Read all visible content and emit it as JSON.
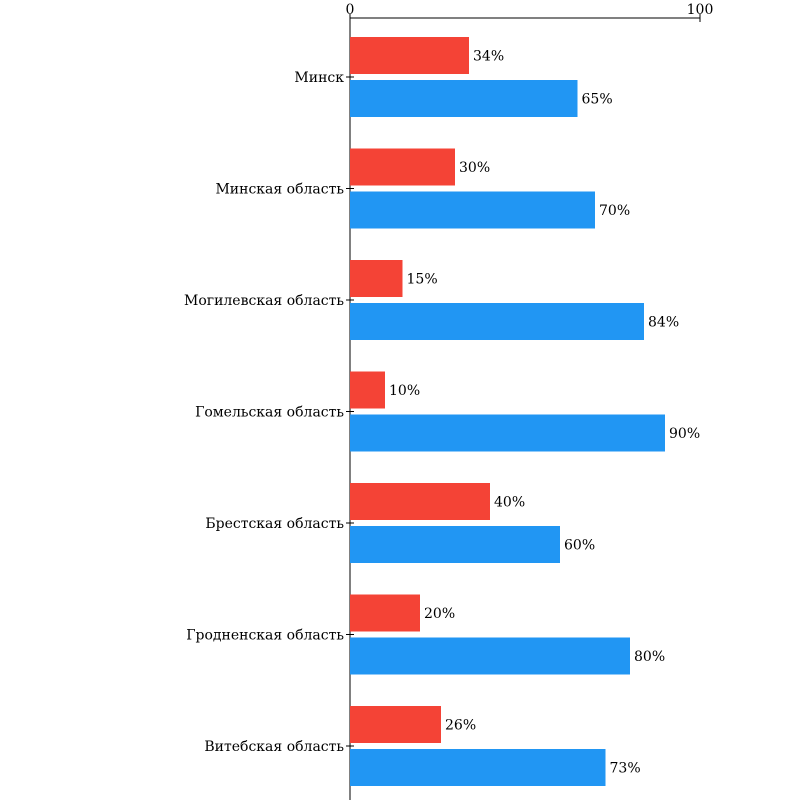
{
  "chart_data": {
    "type": "bar",
    "orientation": "horizontal",
    "xlim": [
      0,
      100
    ],
    "x_ticks": [
      "0",
      "100"
    ],
    "categories": [
      "Минск",
      "Минская область",
      "Могилевская область",
      "Гомельская область",
      "Брестская область",
      "Гродненская область",
      "Витебская область"
    ],
    "series": [
      {
        "color": "#F44336",
        "values": [
          34,
          30,
          15,
          10,
          40,
          20,
          26
        ],
        "labels": [
          "34%",
          "30%",
          "15%",
          "10%",
          "40%",
          "20%",
          "26%"
        ]
      },
      {
        "color": "#2196F3",
        "values": [
          65,
          70,
          84,
          90,
          60,
          80,
          73
        ],
        "labels": [
          "65%",
          "70%",
          "84%",
          "90%",
          "60%",
          "80%",
          "73%"
        ]
      }
    ],
    "legend": "none",
    "grid": false
  }
}
